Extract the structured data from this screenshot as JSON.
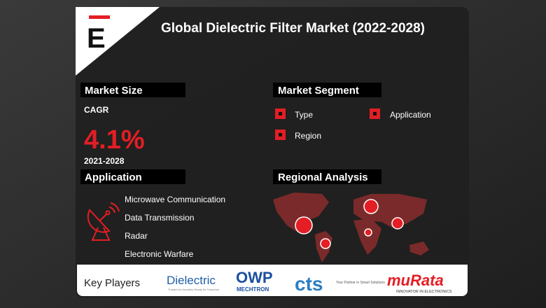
{
  "logo": "E",
  "header": {
    "title": "Global Dielectric Filter Market (2022-2028)"
  },
  "market_size": {
    "heading": "Market Size",
    "metric": "CAGR",
    "value": "4.1%",
    "period": "2021-2028"
  },
  "market_segment": {
    "heading": "Market Segment",
    "items": [
      "Type",
      "Application",
      "Region"
    ]
  },
  "application": {
    "heading": "Application",
    "items": [
      "Microwave Communication",
      "Data Transmission",
      "Radar",
      "Electronic Warfare"
    ]
  },
  "regional_analysis": {
    "heading": "Regional Analysis"
  },
  "key_players": {
    "heading": "Key Players",
    "logos": [
      {
        "name": "Dielectric",
        "tagline": "Trusted for Decades Ready for Tomorrow"
      },
      {
        "name": "OWP",
        "tagline": "MECHTRON"
      },
      {
        "name": "cts",
        "tagline": "Your Partner in Smart Solutions"
      },
      {
        "name": "muRata",
        "tagline": "INNOVATOR IN ELECTRONICS"
      }
    ]
  }
}
